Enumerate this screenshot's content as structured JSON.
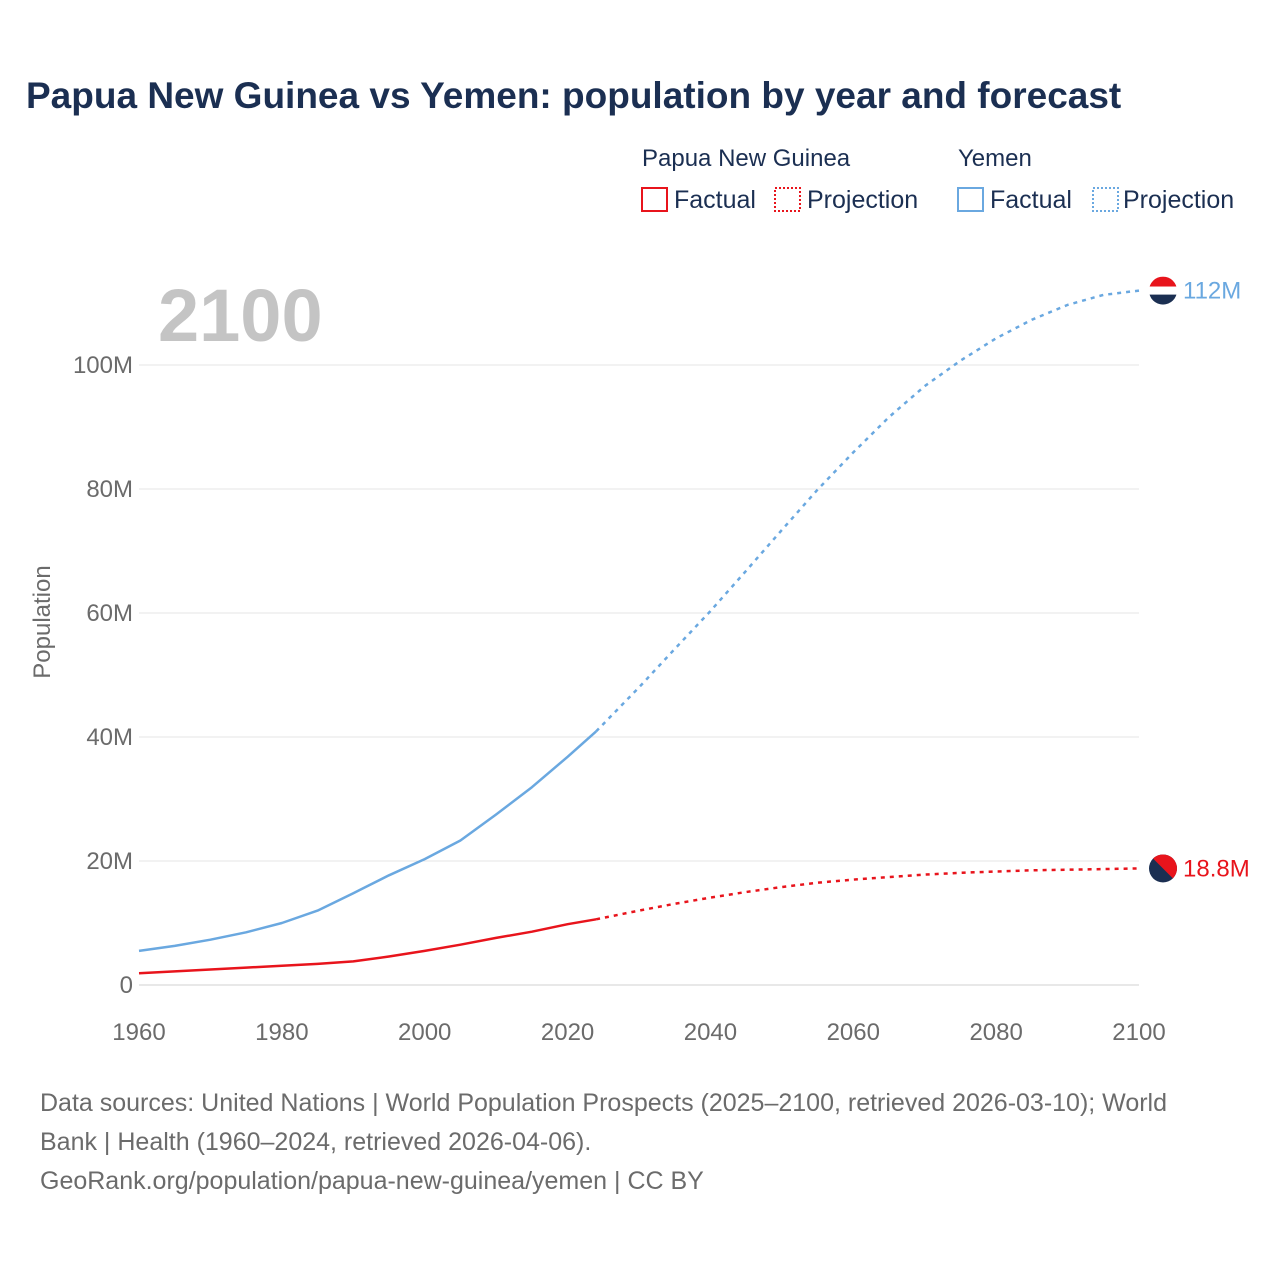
{
  "chart_data": {
    "type": "line",
    "title": "Papua New Guinea vs Yemen: population by year and forecast",
    "ylabel": "Population",
    "xlabel": "",
    "year_label": "2100",
    "xlim": [
      1960,
      2100
    ],
    "ylim": [
      0,
      120000000
    ],
    "x_ticks": [
      1960,
      1980,
      2000,
      2020,
      2040,
      2060,
      2080,
      2100
    ],
    "x_tick_labels": [
      "1960",
      "1980",
      "2000",
      "2020",
      "2040",
      "2060",
      "2080",
      "2100"
    ],
    "y_ticks": [
      0,
      20000000,
      40000000,
      60000000,
      80000000,
      100000000
    ],
    "y_tick_labels": [
      "0",
      "20M",
      "40M",
      "60M",
      "80M",
      "100M"
    ],
    "legend": {
      "groups": [
        {
          "name": "Papua New Guinea",
          "color": "#e8141c",
          "factual_label": "Factual",
          "projection_label": "Projection"
        },
        {
          "name": "Yemen",
          "color": "#6aa8e0",
          "factual_label": "Factual",
          "projection_label": "Projection"
        }
      ]
    },
    "factual_end_year": 2024,
    "series": [
      {
        "name": "Yemen",
        "color": "#6aa8e0",
        "end_label": "112M",
        "flag": "yemen-flag",
        "x": [
          1960,
          1965,
          1970,
          1975,
          1980,
          1985,
          1990,
          1995,
          2000,
          2005,
          2010,
          2015,
          2020,
          2024,
          2030,
          2035,
          2040,
          2045,
          2050,
          2055,
          2060,
          2065,
          2070,
          2075,
          2080,
          2085,
          2090,
          2095,
          2100
        ],
        "values": [
          5500000,
          6300000,
          7300000,
          8500000,
          10000000,
          12000000,
          14800000,
          17700000,
          20300000,
          23300000,
          27500000,
          31900000,
          36800000,
          40900000,
          48000000,
          54200000,
          60300000,
          66800000,
          73400000,
          79900000,
          85900000,
          91600000,
          96600000,
          100700000,
          104300000,
          107300000,
          109700000,
          111300000,
          112000000
        ]
      },
      {
        "name": "Papua New Guinea",
        "color": "#e8141c",
        "end_label": "18.8M",
        "flag": "papua-new-guinea-flag",
        "x": [
          1960,
          1965,
          1970,
          1975,
          1980,
          1985,
          1990,
          1995,
          2000,
          2005,
          2010,
          2015,
          2020,
          2024,
          2030,
          2035,
          2040,
          2045,
          2050,
          2055,
          2060,
          2065,
          2070,
          2075,
          2080,
          2085,
          2090,
          2095,
          2100
        ],
        "values": [
          1900000,
          2200000,
          2500000,
          2800000,
          3100000,
          3400000,
          3800000,
          4600000,
          5500000,
          6500000,
          7600000,
          8600000,
          9800000,
          10600000,
          12000000,
          13100000,
          14100000,
          15000000,
          15800000,
          16500000,
          17000000,
          17400000,
          17800000,
          18100000,
          18300000,
          18500000,
          18600000,
          18700000,
          18800000
        ]
      }
    ]
  },
  "sources": {
    "line1": "Data sources: United Nations | World Population Prospects (2025–2100, retrieved 2026-03-10); World",
    "line2": "Bank | Health (1960–2024, retrieved 2026-04-06).",
    "line3": "GeoRank.org/population/papua-new-guinea/yemen | CC BY"
  }
}
